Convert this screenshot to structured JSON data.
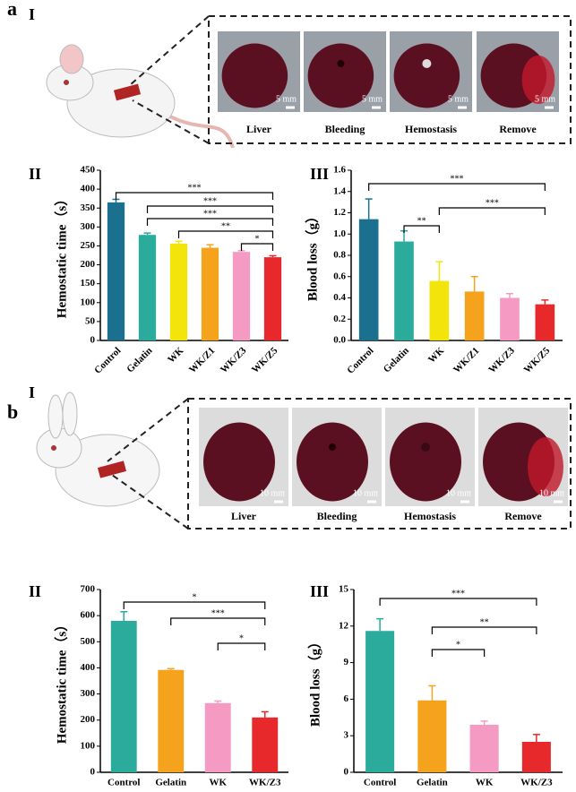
{
  "panels": [
    {
      "label": "a",
      "sub": [
        "I",
        "II",
        "III"
      ],
      "photo_captions": [
        "Liver",
        "Bleeding",
        "Hemostasis",
        "Remove"
      ],
      "scale_bar": "5 mm"
    },
    {
      "label": "b",
      "sub": [
        "I",
        "II",
        "III"
      ],
      "photo_captions": [
        "Liver",
        "Bleeding",
        "Hemostasis",
        "Remove"
      ],
      "scale_bar": "10 mm"
    }
  ],
  "chart_data": [
    {
      "type": "bar",
      "y_label": "Hemostatic time（s）",
      "categories": [
        "Control",
        "Gelatin",
        "WK",
        "WK/Z1",
        "WK/Z3",
        "WK/Z5"
      ],
      "values": [
        365,
        279,
        256,
        245,
        234,
        220
      ],
      "errors": [
        8,
        5,
        6,
        8,
        3,
        4
      ],
      "colors": [
        "#1b6f8f",
        "#2aab9b",
        "#f3e40c",
        "#f5a31c",
        "#f59ac2",
        "#e8292b"
      ],
      "ylim": [
        0,
        450
      ],
      "yticks": [
        0,
        50,
        100,
        150,
        200,
        250,
        300,
        350,
        400,
        450
      ],
      "significance": [
        "***",
        "***",
        "***",
        "**",
        "*"
      ]
    },
    {
      "type": "bar",
      "y_label": "Blood loss（g）",
      "categories": [
        "Control",
        "Gelatin",
        "WK",
        "WK/Z1",
        "WK/Z3",
        "WK/Z5"
      ],
      "values": [
        1.14,
        0.93,
        0.56,
        0.46,
        0.4,
        0.34
      ],
      "errors": [
        0.19,
        0.1,
        0.18,
        0.14,
        0.04,
        0.04
      ],
      "colors": [
        "#1b6f8f",
        "#2aab9b",
        "#f3e40c",
        "#f5a31c",
        "#f59ac2",
        "#e8292b"
      ],
      "ylim": [
        0,
        1.6
      ],
      "yticks": [
        {
          "value": 0,
          "label": "0.0"
        },
        {
          "value": 0.2,
          "label": "0.2"
        },
        {
          "value": 0.4,
          "label": "0.4"
        },
        {
          "value": 0.6,
          "label": "0.6"
        },
        {
          "value": 0.8,
          "label": "0.8"
        },
        {
          "value": 1,
          "label": "1.0"
        },
        {
          "value": 1.2,
          "label": "1.2"
        },
        {
          "value": 1.4,
          "label": "1.4"
        },
        {
          "value": 1.6,
          "label": "1.6"
        }
      ],
      "significance": [
        "***",
        "***",
        "**"
      ]
    },
    {
      "type": "bar",
      "y_label": "Hemostatic time（s）",
      "categories": [
        "Control",
        "Gelatin",
        "WK",
        "WK/Z3"
      ],
      "values": [
        580,
        392,
        265,
        210
      ],
      "errors": [
        35,
        5,
        8,
        22
      ],
      "colors": [
        "#2aab9b",
        "#f5a31c",
        "#f59ac2",
        "#e8292b"
      ],
      "ylim": [
        0,
        700
      ],
      "yticks": [
        0,
        100,
        200,
        300,
        400,
        500,
        600,
        700
      ],
      "significance": [
        "*",
        "***",
        "*"
      ]
    },
    {
      "type": "bar",
      "y_label": "Blood loss（g）",
      "categories": [
        "Control",
        "Gelatin",
        "WK",
        "WK/Z3"
      ],
      "values": [
        11.6,
        5.9,
        3.9,
        2.5
      ],
      "errors": [
        1.0,
        1.2,
        0.3,
        0.6
      ],
      "colors": [
        "#2aab9b",
        "#f5a31c",
        "#f59ac2",
        "#e8292b"
      ],
      "ylim": [
        0,
        15
      ],
      "yticks": [
        0,
        3,
        6,
        9,
        12,
        15
      ],
      "significance": [
        "***",
        "**",
        "*"
      ]
    }
  ]
}
